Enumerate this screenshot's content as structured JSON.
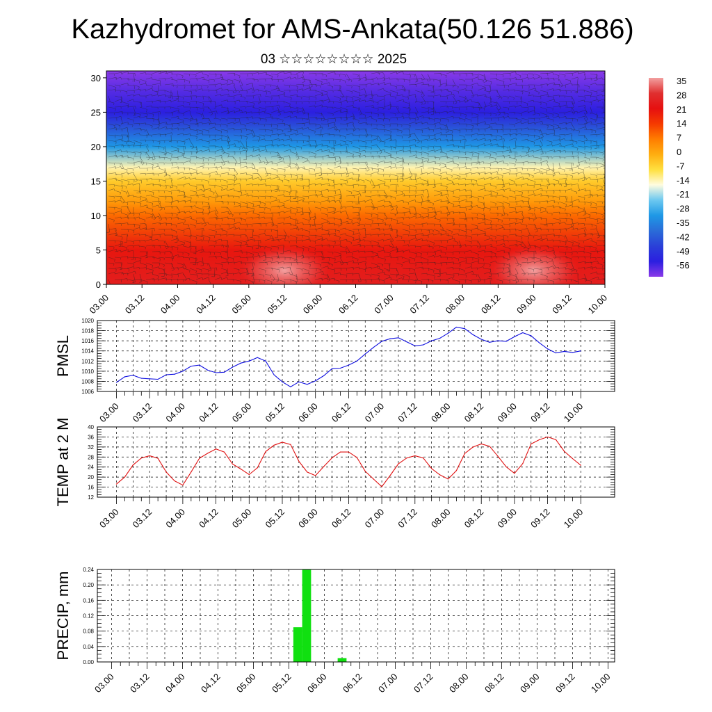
{
  "title": "Kazhydromet for AMS-Ankata(50.126 51.886)",
  "subtitle": "03 ☆☆☆☆☆☆☆☆ 2025",
  "time_labels": [
    "03.00",
    "03.12",
    "04.00",
    "04.12",
    "05.00",
    "05.12",
    "06.00",
    "06.12",
    "07.00",
    "07.12",
    "08.00",
    "08.12",
    "09.00",
    "09.12",
    "10.00"
  ],
  "chart_data": [
    {
      "id": "cross-section",
      "type": "heatmap",
      "title": "Kazhydromet for AMS-Ankata(50.126 51.886)",
      "subtitle": "03 ☆☆☆☆☆☆☆☆ 2025",
      "xlabel": "",
      "ylabel": "",
      "x_ticks": [
        "03.00",
        "03.12",
        "04.00",
        "04.12",
        "05.00",
        "05.12",
        "06.00",
        "06.12",
        "07.00",
        "07.12",
        "08.00",
        "08.12",
        "09.00",
        "09.12",
        "10.00"
      ],
      "y_ticks": [
        0,
        5,
        10,
        15,
        20,
        25,
        30
      ],
      "ylim": [
        0,
        31
      ],
      "colorbar": {
        "labels": [
          "35",
          "28",
          "21",
          "14",
          "7",
          "0",
          "-7",
          "-14",
          "-21",
          "-28",
          "-35",
          "-42",
          "-49",
          "-56"
        ],
        "stops": [
          {
            "value": 35,
            "color": "#f2a0a0"
          },
          {
            "value": 28,
            "color": "#e03030"
          },
          {
            "value": 21,
            "color": "#e61010"
          },
          {
            "value": 14,
            "color": "#f53a00"
          },
          {
            "value": 7,
            "color": "#ff7d00"
          },
          {
            "value": 0,
            "color": "#ffae10"
          },
          {
            "value": -7,
            "color": "#ffe040"
          },
          {
            "value": -14,
            "color": "#fffce0"
          },
          {
            "value": -21,
            "color": "#6cc8f0"
          },
          {
            "value": -28,
            "color": "#1e98e6"
          },
          {
            "value": -35,
            "color": "#2a6cd8"
          },
          {
            "value": -42,
            "color": "#2a40d8"
          },
          {
            "value": -49,
            "color": "#2b1fe0"
          },
          {
            "value": -56,
            "color": "#8a3ae8"
          }
        ]
      },
      "temperature_profile": [
        {
          "height": 0,
          "temp": 24
        },
        {
          "height": 5,
          "temp": 20
        },
        {
          "height": 10,
          "temp": 9
        },
        {
          "height": 12,
          "temp": 3
        },
        {
          "height": 15,
          "temp": -4
        },
        {
          "height": 17,
          "temp": -12
        },
        {
          "height": 20,
          "temp": -28
        },
        {
          "height": 23,
          "temp": -40
        },
        {
          "height": 25,
          "temp": -49
        },
        {
          "height": 28,
          "temp": -52
        },
        {
          "height": 31,
          "temp": -57
        }
      ],
      "warm_cores": [
        {
          "time": "05.12",
          "height": 2,
          "temp": 34
        },
        {
          "time": "09.00",
          "height": 2,
          "temp": 32
        }
      ]
    },
    {
      "id": "pmsl",
      "type": "line",
      "ylabel": "PMSL",
      "color": "#1010e0",
      "ylim": [
        1006,
        1020
      ],
      "y_ticks": [
        1006,
        1008,
        1010,
        1012,
        1014,
        1016,
        1018,
        1020
      ],
      "x": [
        "03.00",
        "03.03",
        "03.06",
        "03.09",
        "03.12",
        "03.15",
        "03.18",
        "03.21",
        "04.00",
        "04.03",
        "04.06",
        "04.09",
        "04.12",
        "04.15",
        "04.18",
        "04.21",
        "05.00",
        "05.03",
        "05.06",
        "05.09",
        "05.12",
        "05.15",
        "05.18",
        "05.21",
        "06.00",
        "06.03",
        "06.06",
        "06.09",
        "06.12",
        "06.15",
        "06.18",
        "06.21",
        "07.00",
        "07.03",
        "07.06",
        "07.09",
        "07.12",
        "07.15",
        "07.18",
        "07.21",
        "08.00",
        "08.03",
        "08.06",
        "08.09",
        "08.12",
        "08.15",
        "08.18",
        "08.21",
        "09.00",
        "09.03",
        "09.06",
        "09.09",
        "09.12",
        "09.15",
        "09.18",
        "09.21",
        "10.00"
      ],
      "values": [
        1007.8,
        1008.9,
        1009.2,
        1008.6,
        1008.5,
        1008.4,
        1009.3,
        1009.4,
        1010.0,
        1011.0,
        1011.2,
        1010.2,
        1009.7,
        1009.8,
        1010.8,
        1011.6,
        1012.0,
        1012.7,
        1012.0,
        1009.3,
        1007.9,
        1006.9,
        1007.9,
        1007.4,
        1008.1,
        1009.1,
        1010.5,
        1010.6,
        1011.2,
        1012.0,
        1013.4,
        1014.7,
        1015.9,
        1016.4,
        1016.6,
        1015.8,
        1015.0,
        1015.2,
        1016.0,
        1016.5,
        1017.5,
        1018.7,
        1018.4,
        1017.2,
        1016.3,
        1015.7,
        1016.0,
        1015.9,
        1016.8,
        1017.6,
        1017.0,
        1015.6,
        1014.4,
        1013.6,
        1013.9,
        1013.7,
        1014.0
      ]
    },
    {
      "id": "temp2m",
      "type": "line",
      "ylabel": "TEMP at 2 M",
      "color": "#e01010",
      "ylim": [
        12,
        40
      ],
      "y_ticks": [
        12,
        16,
        20,
        24,
        28,
        32,
        36,
        40
      ],
      "x": [
        "03.00",
        "03.03",
        "03.06",
        "03.09",
        "03.12",
        "03.15",
        "03.18",
        "03.21",
        "04.00",
        "04.03",
        "04.06",
        "04.09",
        "04.12",
        "04.15",
        "04.18",
        "04.21",
        "05.00",
        "05.03",
        "05.06",
        "05.09",
        "05.12",
        "05.15",
        "05.18",
        "05.21",
        "06.00",
        "06.03",
        "06.06",
        "06.09",
        "06.12",
        "06.15",
        "06.18",
        "06.21",
        "07.00",
        "07.03",
        "07.06",
        "07.09",
        "07.12",
        "07.15",
        "07.18",
        "07.21",
        "08.00",
        "08.03",
        "08.06",
        "08.09",
        "08.12",
        "08.15",
        "08.18",
        "08.21",
        "09.00",
        "09.03",
        "09.06",
        "09.09",
        "09.12",
        "09.15",
        "09.18",
        "09.21",
        "10.00"
      ],
      "values": [
        17.2,
        20.0,
        24.8,
        27.6,
        28.5,
        27.5,
        22.0,
        18.5,
        16.8,
        22.0,
        27.5,
        29.5,
        31.2,
        30.0,
        25.2,
        23.2,
        21.0,
        23.7,
        30.2,
        32.7,
        33.9,
        33.0,
        26.3,
        22.0,
        20.6,
        24.2,
        27.7,
        30.0,
        30.0,
        27.8,
        22.3,
        19.2,
        16.2,
        20.6,
        25.3,
        27.6,
        28.5,
        27.6,
        23.4,
        20.9,
        19.2,
        22.6,
        29.4,
        32.0,
        33.2,
        32.3,
        28.3,
        24.1,
        21.5,
        25.4,
        33.2,
        34.9,
        36.0,
        34.9,
        30.3,
        27.4,
        24.7
      ]
    },
    {
      "id": "precip",
      "type": "bar",
      "ylabel": "PRECIP, mm",
      "color": "#10e010",
      "ylim": [
        0,
        0.24
      ],
      "y_ticks": [
        "0.00",
        "0.04",
        "0.08",
        "0.12",
        "0.16",
        "0.20",
        "0.24"
      ],
      "x": [
        "05.15",
        "05.18",
        "06.06"
      ],
      "values": [
        0.09,
        0.24,
        0.01
      ]
    }
  ]
}
